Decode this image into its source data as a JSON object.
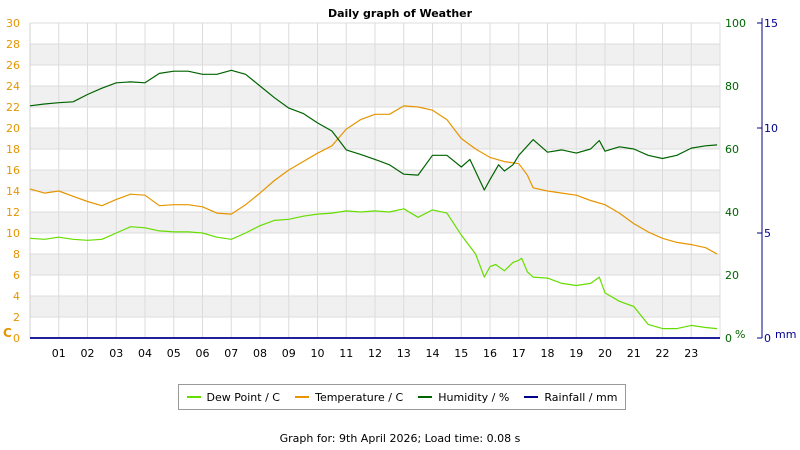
{
  "chart_data": {
    "type": "line",
    "title": "Daily graph of Weather",
    "x_ticks": [
      "01",
      "02",
      "03",
      "04",
      "05",
      "06",
      "07",
      "08",
      "09",
      "10",
      "11",
      "12",
      "13",
      "14",
      "15",
      "16",
      "17",
      "18",
      "19",
      "20",
      "21",
      "22",
      "23"
    ],
    "xlim": [
      0,
      24
    ],
    "left_axis": {
      "unit_label": "C",
      "ylim": [
        0,
        30
      ],
      "ticks": [
        0,
        2,
        4,
        6,
        8,
        10,
        12,
        14,
        16,
        18,
        20,
        22,
        24,
        26,
        28,
        30
      ],
      "color": "#e69500"
    },
    "right_axis_humidity": {
      "unit_label": "%",
      "ylim": [
        0,
        100
      ],
      "ticks": [
        0,
        20,
        40,
        60,
        80,
        100
      ],
      "color": "#006400"
    },
    "right_axis_rain": {
      "unit_label": "mm",
      "ylim": [
        0,
        15
      ],
      "ticks": [
        0,
        5,
        10,
        15
      ],
      "color": "#00008b"
    },
    "grid": true,
    "legend_position": "bottom",
    "series": [
      {
        "name": "Dew Point / C",
        "axis": "left",
        "color": "#66dd00",
        "x": [
          0,
          0.5,
          1,
          1.5,
          2,
          2.5,
          3,
          3.5,
          4,
          4.5,
          5,
          5.5,
          6,
          6.5,
          7,
          7.5,
          8,
          8.5,
          9,
          9.5,
          10,
          10.5,
          11,
          11.5,
          12,
          12.5,
          13,
          13.5,
          14,
          14.5,
          15,
          15.5,
          15.8,
          16,
          16.2,
          16.5,
          16.8,
          17,
          17.1,
          17.3,
          17.5,
          18,
          18.5,
          19,
          19.5,
          19.8,
          20,
          20.5,
          21,
          21.5,
          22,
          22.5,
          23,
          23.5,
          23.9
        ],
        "values": [
          9.5,
          9.4,
          9.6,
          9.4,
          9.3,
          9.4,
          10.0,
          10.6,
          10.5,
          10.2,
          10.1,
          10.1,
          10.0,
          9.6,
          9.4,
          10.0,
          10.7,
          11.2,
          11.3,
          11.6,
          11.8,
          11.9,
          12.1,
          12.0,
          12.1,
          12.0,
          12.3,
          11.5,
          12.2,
          11.9,
          9.8,
          8.0,
          5.8,
          6.8,
          7.0,
          6.4,
          7.2,
          7.4,
          7.6,
          6.3,
          5.8,
          5.7,
          5.2,
          5.0,
          5.2,
          5.8,
          4.3,
          3.5,
          3.0,
          1.3,
          0.9,
          0.9,
          1.2,
          1.0,
          0.9
        ]
      },
      {
        "name": "Temperature / C",
        "axis": "left",
        "color": "#e69500",
        "x": [
          0,
          0.5,
          1,
          1.5,
          2,
          2.5,
          3,
          3.5,
          4,
          4.5,
          5,
          5.5,
          6,
          6.5,
          7,
          7.5,
          8,
          8.5,
          9,
          9.5,
          10,
          10.5,
          11,
          11.5,
          12,
          12.5,
          13,
          13.5,
          14,
          14.5,
          15,
          15.5,
          16,
          16.5,
          17,
          17.3,
          17.5,
          18,
          18.5,
          19,
          19.5,
          20,
          20.5,
          21,
          21.5,
          22,
          22.5,
          23,
          23.5,
          23.9
        ],
        "values": [
          14.2,
          13.8,
          14.0,
          13.5,
          13.0,
          12.6,
          13.2,
          13.7,
          13.6,
          12.6,
          12.7,
          12.7,
          12.5,
          11.9,
          11.8,
          12.7,
          13.8,
          15.0,
          16.0,
          16.8,
          17.6,
          18.3,
          19.9,
          20.8,
          21.3,
          21.3,
          22.1,
          22.0,
          21.7,
          20.8,
          19.0,
          18.0,
          17.2,
          16.8,
          16.6,
          15.5,
          14.3,
          14.0,
          13.8,
          13.6,
          13.1,
          12.7,
          11.9,
          10.9,
          10.1,
          9.5,
          9.1,
          8.9,
          8.6,
          8.0
        ]
      },
      {
        "name": "Humidity / %",
        "axis": "humidity",
        "color": "#006400",
        "x": [
          0,
          0.5,
          1,
          1.5,
          2,
          2.5,
          3,
          3.5,
          4,
          4.5,
          5,
          5.5,
          6,
          6.5,
          7,
          7.5,
          8,
          8.5,
          9,
          9.5,
          10,
          10.5,
          11,
          11.5,
          12,
          12.5,
          13,
          13.5,
          14,
          14.5,
          15,
          15.3,
          15.8,
          16,
          16.3,
          16.5,
          16.8,
          17,
          17.5,
          18,
          18.5,
          19,
          19.5,
          19.8,
          20,
          20.5,
          21,
          21.5,
          22,
          22.5,
          23,
          23.5,
          23.9
        ],
        "values": [
          73.7,
          74.3,
          74.7,
          75.0,
          77.3,
          79.3,
          81.0,
          81.3,
          81.0,
          84.0,
          84.7,
          84.7,
          83.7,
          83.7,
          85.0,
          83.7,
          80.0,
          76.3,
          73.0,
          71.3,
          68.3,
          65.7,
          59.7,
          58.3,
          56.7,
          55.0,
          52.0,
          51.7,
          58.0,
          58.0,
          54.3,
          56.7,
          47.0,
          50.3,
          55.0,
          53.0,
          55.0,
          58.0,
          63.0,
          59.0,
          59.7,
          58.7,
          60.0,
          62.7,
          59.3,
          60.7,
          60.0,
          58.0,
          57.0,
          58.0,
          60.3,
          61.0,
          61.3
        ]
      },
      {
        "name": "Rainfall / mm",
        "axis": "rain",
        "color": "#00008b",
        "x": [
          0,
          24
        ],
        "values": [
          0,
          0
        ]
      }
    ]
  },
  "footer": {
    "prefix": "Graph for:",
    "date": "9th April 2026",
    "load_label": "Load time:",
    "load_value": "0.08 s"
  }
}
